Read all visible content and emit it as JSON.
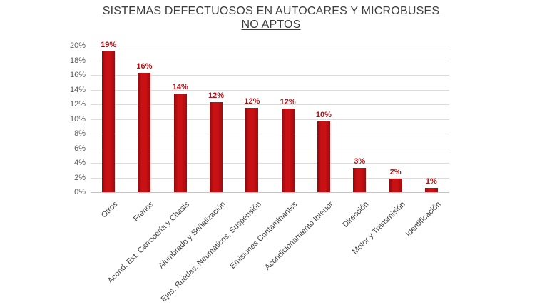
{
  "chart": {
    "title_line1": "SISTEMAS DEFECTUOSOS EN AUTOCARES Y MICROBUSES",
    "title_line2": "NO APTOS"
  },
  "chart_data": {
    "type": "bar",
    "title": "SISTEMAS DEFECTUOSOS EN AUTOCARES Y MICROBUSES NO APTOS",
    "categories": [
      "Otros",
      "Frenos",
      "Acond. Ext. Carrocería y Chasis",
      "Alumbrado y Señalización",
      "Ejes, Ruedas, Neumáticos, Suspensión",
      "Emisiones Contaminantes",
      "Acondicionamiento Interior",
      "Dirección",
      "Motor y Transmisión",
      "Identificación"
    ],
    "values": [
      19,
      16,
      14,
      12,
      12,
      12,
      10,
      3,
      2,
      1
    ],
    "data_labels": [
      "19%",
      "16%",
      "14%",
      "12%",
      "12%",
      "12%",
      "10%",
      "3%",
      "2%",
      "1%"
    ],
    "bar_heights_visual": [
      19.2,
      16.3,
      13.5,
      12.3,
      11.5,
      11.4,
      9.65,
      3.3,
      1.9,
      0.6
    ],
    "y_ticks": [
      "20%",
      "18%",
      "16%",
      "14%",
      "12%",
      "10%",
      "8%",
      "6%",
      "4%",
      "2%",
      "0%"
    ],
    "ylim": [
      0,
      20
    ],
    "xlabel": "",
    "ylabel": "",
    "grid": true,
    "legend": false,
    "colors": {
      "bar_main": "#c91114",
      "bar_edge_dark": "#8b0a0c",
      "bar_edge_right": "#9e0c0e",
      "data_label": "#b01115",
      "y_tick_label": "#595959",
      "category_label": "#404040",
      "gridline": "#dcdcdc",
      "axis_line": "#c4c4c4",
      "title": "#3d3d3d",
      "background": "#ffffff"
    }
  }
}
